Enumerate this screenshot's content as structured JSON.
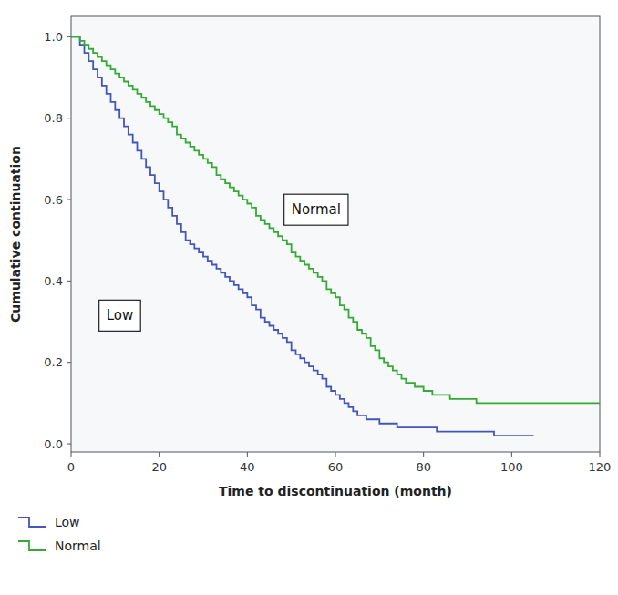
{
  "chart_data": {
    "type": "step",
    "x_label": "Time to discontinuation (month)",
    "y_label": "Cumulative continuation",
    "xlim": [
      0,
      120
    ],
    "ylim": [
      -0.02,
      1.05
    ],
    "xticks": [
      0,
      20,
      40,
      60,
      80,
      100,
      120
    ],
    "yticks": [
      {
        "value": 0.0,
        "label": "0.0"
      },
      0.2,
      0.4,
      0.6,
      0.8,
      {
        "value": 1.0,
        "label": "1.0"
      }
    ],
    "grid": false,
    "legend": "bottom",
    "annotations": [
      {
        "text": "Low",
        "x": 8,
        "y": 0.315
      },
      {
        "text": "Normal",
        "x": 50,
        "y": 0.575
      }
    ],
    "series": [
      {
        "name": "Low",
        "color": "#4455bb",
        "x": [
          0,
          1,
          2,
          3,
          4,
          5,
          6,
          7,
          8,
          9,
          10,
          11,
          12,
          13,
          14,
          15,
          16,
          17,
          18,
          19,
          20,
          21,
          22,
          23,
          24,
          25,
          26,
          27,
          28,
          29,
          30,
          31,
          32,
          33,
          34,
          35,
          36,
          37,
          38,
          39,
          40,
          41,
          42,
          43,
          44,
          45,
          46,
          47,
          48,
          49,
          50,
          51,
          52,
          53,
          54,
          55,
          56,
          57,
          58,
          59,
          60,
          61,
          62,
          63,
          64,
          65,
          66,
          67,
          68,
          69,
          70,
          71,
          72,
          73,
          74,
          75,
          76,
          77,
          78,
          79,
          80,
          81,
          82,
          83,
          84,
          85,
          86,
          87,
          88,
          89,
          90,
          91,
          92,
          93,
          94,
          95,
          96,
          97,
          98,
          99,
          100,
          101,
          102,
          103,
          104,
          105
        ],
        "values": [
          1.0,
          1.0,
          0.98,
          0.96,
          0.94,
          0.92,
          0.9,
          0.88,
          0.86,
          0.84,
          0.82,
          0.8,
          0.78,
          0.76,
          0.74,
          0.72,
          0.7,
          0.68,
          0.66,
          0.64,
          0.62,
          0.6,
          0.58,
          0.56,
          0.54,
          0.52,
          0.5,
          0.49,
          0.48,
          0.47,
          0.46,
          0.45,
          0.44,
          0.43,
          0.42,
          0.41,
          0.4,
          0.39,
          0.38,
          0.37,
          0.36,
          0.34,
          0.33,
          0.31,
          0.3,
          0.29,
          0.28,
          0.27,
          0.26,
          0.25,
          0.23,
          0.22,
          0.21,
          0.2,
          0.19,
          0.18,
          0.17,
          0.16,
          0.14,
          0.13,
          0.12,
          0.11,
          0.1,
          0.09,
          0.08,
          0.07,
          0.07,
          0.06,
          0.06,
          0.06,
          0.05,
          0.05,
          0.05,
          0.05,
          0.04,
          0.04,
          0.04,
          0.04,
          0.04,
          0.04,
          0.04,
          0.04,
          0.04,
          0.03,
          0.03,
          0.03,
          0.03,
          0.03,
          0.03,
          0.03,
          0.03,
          0.03,
          0.03,
          0.03,
          0.03,
          0.03,
          0.02,
          0.02,
          0.02,
          0.02,
          0.02,
          0.02,
          0.02,
          0.02,
          0.02,
          0.02
        ]
      },
      {
        "name": "Normal",
        "color": "#33aa33",
        "x": [
          0,
          1,
          2,
          3,
          4,
          5,
          6,
          7,
          8,
          9,
          10,
          11,
          12,
          13,
          14,
          15,
          16,
          17,
          18,
          19,
          20,
          21,
          22,
          23,
          24,
          25,
          26,
          27,
          28,
          29,
          30,
          31,
          32,
          33,
          34,
          35,
          36,
          37,
          38,
          39,
          40,
          41,
          42,
          43,
          44,
          45,
          46,
          47,
          48,
          49,
          50,
          51,
          52,
          53,
          54,
          55,
          56,
          57,
          58,
          59,
          60,
          61,
          62,
          63,
          64,
          65,
          66,
          67,
          68,
          69,
          70,
          71,
          72,
          73,
          74,
          75,
          76,
          77,
          78,
          79,
          80,
          81,
          82,
          83,
          84,
          85,
          86,
          87,
          88,
          89,
          90,
          91,
          92,
          93,
          94,
          95,
          96,
          97,
          98,
          99,
          100,
          101,
          102,
          103,
          104,
          105,
          106,
          107,
          108,
          109,
          110,
          111,
          112,
          113,
          114,
          115,
          116,
          117,
          118,
          119,
          120
        ],
        "values": [
          1.0,
          1.0,
          0.99,
          0.98,
          0.97,
          0.96,
          0.95,
          0.94,
          0.93,
          0.92,
          0.91,
          0.9,
          0.89,
          0.88,
          0.87,
          0.86,
          0.85,
          0.84,
          0.83,
          0.82,
          0.81,
          0.8,
          0.79,
          0.78,
          0.76,
          0.75,
          0.74,
          0.73,
          0.72,
          0.71,
          0.7,
          0.69,
          0.68,
          0.66,
          0.65,
          0.64,
          0.63,
          0.62,
          0.61,
          0.6,
          0.59,
          0.58,
          0.56,
          0.55,
          0.54,
          0.53,
          0.52,
          0.51,
          0.5,
          0.49,
          0.47,
          0.46,
          0.45,
          0.44,
          0.43,
          0.42,
          0.41,
          0.4,
          0.38,
          0.37,
          0.36,
          0.34,
          0.33,
          0.31,
          0.3,
          0.28,
          0.27,
          0.26,
          0.24,
          0.23,
          0.21,
          0.2,
          0.19,
          0.18,
          0.17,
          0.16,
          0.15,
          0.15,
          0.14,
          0.14,
          0.13,
          0.13,
          0.12,
          0.12,
          0.12,
          0.12,
          0.11,
          0.11,
          0.11,
          0.11,
          0.11,
          0.11,
          0.1,
          0.1,
          0.1,
          0.1,
          0.1,
          0.1,
          0.1,
          0.1,
          0.1,
          0.1,
          0.1,
          0.1,
          0.1,
          0.1,
          0.1,
          0.1,
          0.1,
          0.1,
          0.1,
          0.1,
          0.1,
          0.1,
          0.1,
          0.1,
          0.1,
          0.1,
          0.1,
          0.1,
          0.1
        ]
      }
    ]
  }
}
